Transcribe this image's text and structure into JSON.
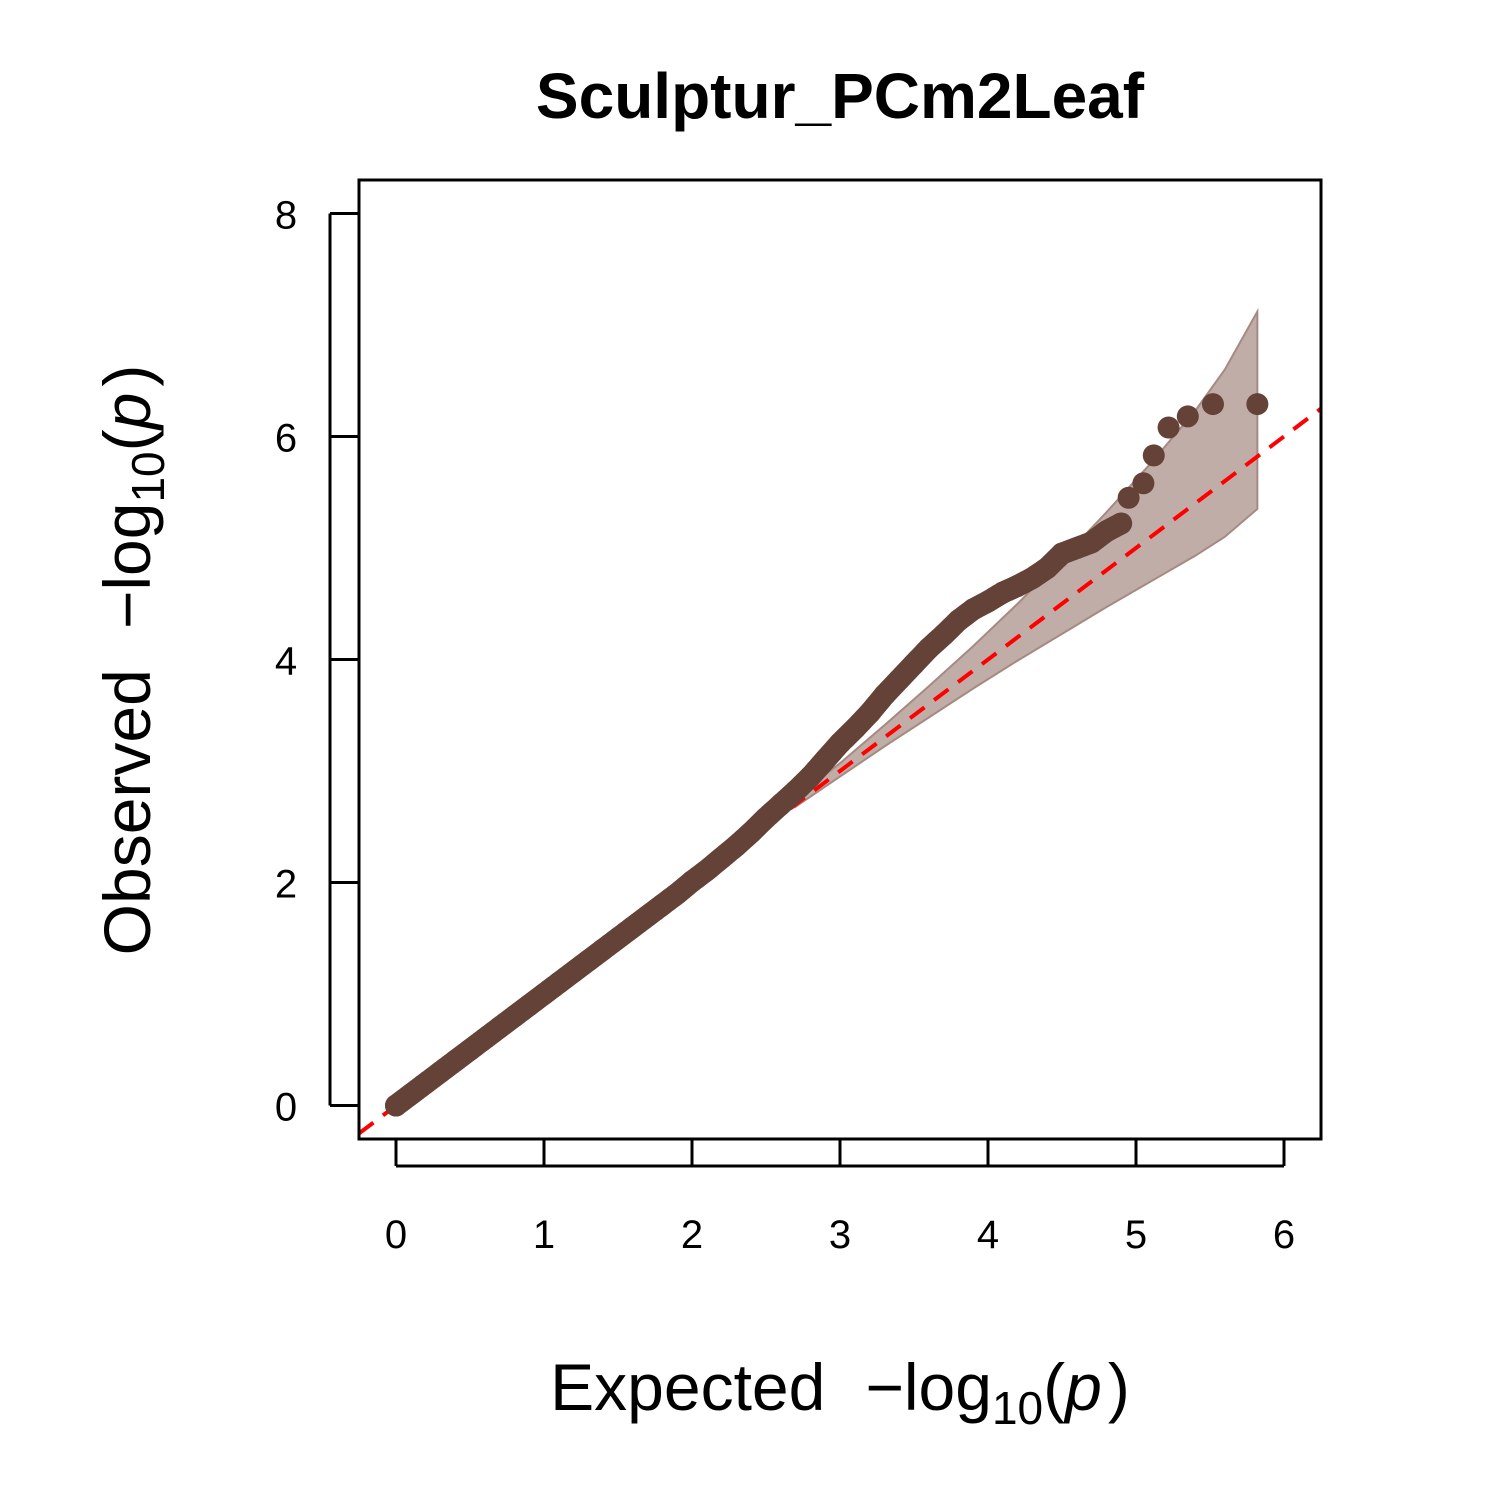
{
  "chart_data": {
    "type": "scatter",
    "title": "Sculptur_PCm2Leaf",
    "xlabel": {
      "main": "Expected",
      "prefix": "−log",
      "subscript": "10",
      "open": "(",
      "var": "p",
      "close": ")"
    },
    "ylabel": {
      "main": "Observed",
      "prefix": "−log",
      "subscript": "10",
      "open": "(",
      "var": "p",
      "close": ")"
    },
    "xlim": [
      -0.25,
      6.25
    ],
    "ylim": [
      -0.3,
      8.3
    ],
    "x_ticks": [
      0,
      1,
      2,
      3,
      4,
      5,
      6
    ],
    "y_ticks": [
      0,
      2,
      4,
      6,
      8
    ],
    "grid": false,
    "legend": "none",
    "colors": {
      "points": "#654237",
      "reference_line": "#ff0000",
      "confidence_band": "#a58a82"
    },
    "reference_line": {
      "slope": 1,
      "intercept": 0,
      "style": "dashed"
    },
    "confidence_band": {
      "x": [
        2.7,
        3.0,
        3.3,
        3.6,
        3.9,
        4.2,
        4.5,
        4.8,
        5.1,
        5.4,
        5.6,
        5.82
      ],
      "lower": [
        2.68,
        2.95,
        3.22,
        3.48,
        3.74,
        3.99,
        4.23,
        4.47,
        4.7,
        4.93,
        5.1,
        5.35
      ],
      "upper": [
        2.76,
        3.07,
        3.41,
        3.76,
        4.12,
        4.5,
        4.9,
        5.32,
        5.76,
        6.23,
        6.6,
        7.12
      ]
    },
    "series": [
      {
        "x": [
          0.0,
          0.1,
          0.2,
          0.3,
          0.4,
          0.5,
          0.6,
          0.7,
          0.8,
          0.9,
          1.0,
          1.1,
          1.2,
          1.3,
          1.4,
          1.5,
          1.6,
          1.7,
          1.8,
          1.9,
          2.0,
          2.1,
          2.2,
          2.3,
          2.4,
          2.5,
          2.6,
          2.7,
          2.8,
          2.9,
          3.0,
          3.1,
          3.2,
          3.3,
          3.4,
          3.5,
          3.6,
          3.7,
          3.8,
          3.9,
          4.0,
          4.1,
          4.2,
          4.3,
          4.4,
          4.5,
          4.6,
          4.7,
          4.8,
          4.9,
          4.95,
          5.05,
          5.12,
          5.22,
          5.35,
          5.52,
          5.82
        ],
        "y": [
          0.0,
          0.1,
          0.2,
          0.3,
          0.4,
          0.5,
          0.6,
          0.7,
          0.8,
          0.9,
          1.0,
          1.1,
          1.2,
          1.3,
          1.4,
          1.5,
          1.6,
          1.7,
          1.8,
          1.9,
          2.01,
          2.11,
          2.22,
          2.33,
          2.45,
          2.58,
          2.7,
          2.82,
          2.95,
          3.1,
          3.25,
          3.38,
          3.52,
          3.68,
          3.82,
          3.96,
          4.1,
          4.22,
          4.35,
          4.45,
          4.52,
          4.6,
          4.66,
          4.73,
          4.82,
          4.95,
          5.0,
          5.05,
          5.15,
          5.22,
          5.45,
          5.58,
          5.83,
          6.08,
          6.18,
          6.29,
          6.29
        ]
      }
    ]
  }
}
